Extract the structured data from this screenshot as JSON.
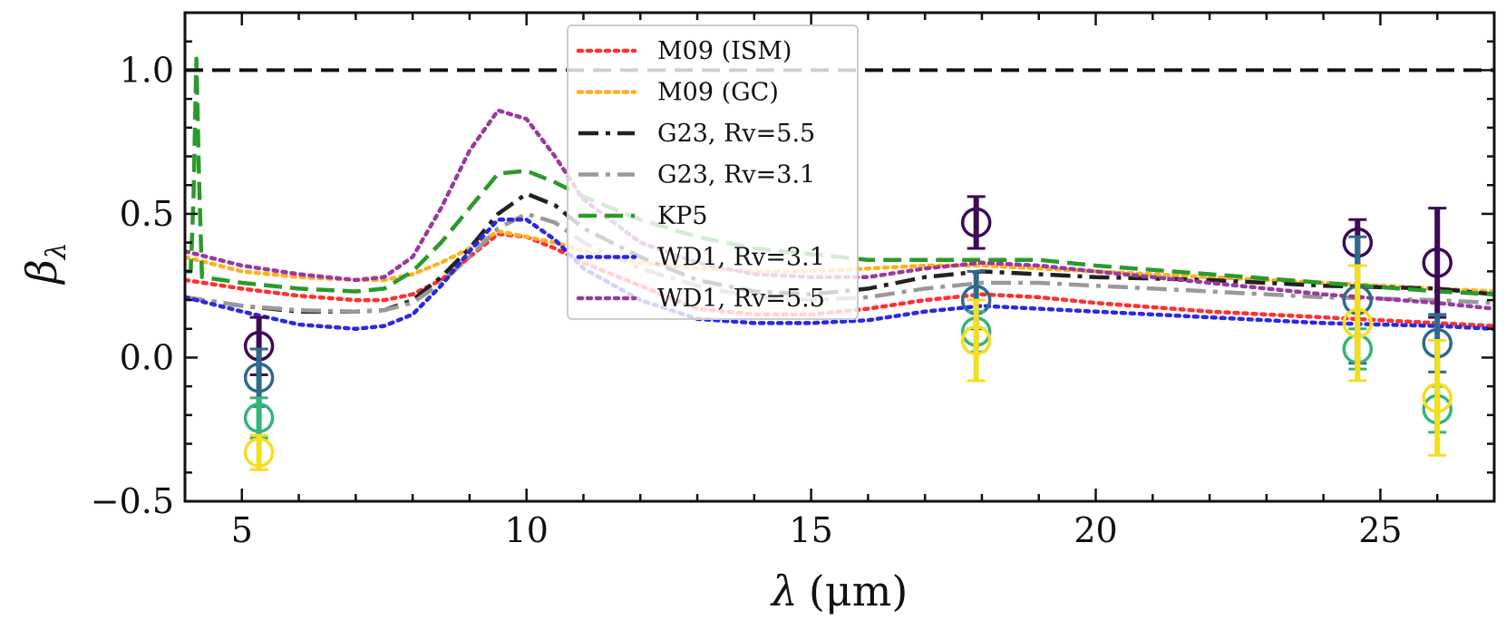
{
  "chart_data": {
    "type": "line",
    "xlabel_symbol": "λ",
    "xlabel_unit": "(μm)",
    "ylabel_symbol": "β",
    "ylabel_subscript": "λ",
    "xlim": [
      4.0,
      27.0
    ],
    "ylim": [
      -0.5,
      1.2
    ],
    "x_ticks": [
      5,
      10,
      15,
      20,
      25
    ],
    "x_tick_labels": [
      "5",
      "10",
      "15",
      "20",
      "25"
    ],
    "y_ticks": [
      -0.5,
      0.0,
      0.5,
      1.0
    ],
    "y_tick_labels": [
      "−0.5",
      "0.0",
      "0.5",
      "1.0"
    ],
    "grid": false,
    "legend_position": "top-center",
    "reference_line": {
      "y": 1.0,
      "color": "#111111",
      "style": "dashed"
    },
    "series": [
      {
        "name": "M09 (ISM)",
        "color": "#ff3030",
        "style": "dotted",
        "points": [
          [
            4.0,
            0.27
          ],
          [
            5,
            0.24
          ],
          [
            6,
            0.215
          ],
          [
            7,
            0.2
          ],
          [
            7.5,
            0.2
          ],
          [
            8,
            0.22
          ],
          [
            8.5,
            0.27
          ],
          [
            9,
            0.35
          ],
          [
            9.5,
            0.43
          ],
          [
            10,
            0.42
          ],
          [
            10.5,
            0.38
          ],
          [
            11,
            0.33
          ],
          [
            12,
            0.25
          ],
          [
            13,
            0.17
          ],
          [
            14,
            0.15
          ],
          [
            15,
            0.15
          ],
          [
            16,
            0.17
          ],
          [
            17,
            0.2
          ],
          [
            18,
            0.22
          ],
          [
            19,
            0.21
          ],
          [
            20,
            0.19
          ],
          [
            22,
            0.16
          ],
          [
            24,
            0.14
          ],
          [
            26,
            0.12
          ],
          [
            27,
            0.11
          ]
        ]
      },
      {
        "name": "M09 (GC)",
        "color": "#ffb020",
        "style": "dotted",
        "points": [
          [
            4.0,
            0.35
          ],
          [
            5,
            0.3
          ],
          [
            6,
            0.28
          ],
          [
            7,
            0.27
          ],
          [
            7.5,
            0.27
          ],
          [
            8,
            0.29
          ],
          [
            8.5,
            0.33
          ],
          [
            9,
            0.38
          ],
          [
            9.5,
            0.44
          ],
          [
            10,
            0.42
          ],
          [
            10.5,
            0.4
          ],
          [
            11,
            0.37
          ],
          [
            12,
            0.33
          ],
          [
            13,
            0.31
          ],
          [
            14,
            0.3
          ],
          [
            15,
            0.3
          ],
          [
            16,
            0.31
          ],
          [
            17,
            0.32
          ],
          [
            18,
            0.32
          ],
          [
            19,
            0.31
          ],
          [
            20,
            0.3
          ],
          [
            22,
            0.28
          ],
          [
            24,
            0.26
          ],
          [
            26,
            0.24
          ],
          [
            27,
            0.23
          ]
        ]
      },
      {
        "name": "G23, Rv=5.5",
        "color": "#222222",
        "style": "dashdot",
        "points": [
          [
            4.0,
            0.21
          ],
          [
            5,
            0.18
          ],
          [
            6,
            0.16
          ],
          [
            7,
            0.16
          ],
          [
            7.5,
            0.165
          ],
          [
            8,
            0.2
          ],
          [
            8.5,
            0.28
          ],
          [
            9,
            0.38
          ],
          [
            9.5,
            0.5
          ],
          [
            10,
            0.57
          ],
          [
            10.5,
            0.53
          ],
          [
            11,
            0.45
          ],
          [
            12,
            0.35
          ],
          [
            13,
            0.27
          ],
          [
            14,
            0.23
          ],
          [
            15,
            0.22
          ],
          [
            16,
            0.24
          ],
          [
            17,
            0.28
          ],
          [
            18,
            0.3
          ],
          [
            19,
            0.29
          ],
          [
            20,
            0.28
          ],
          [
            22,
            0.27
          ],
          [
            24,
            0.25
          ],
          [
            26,
            0.24
          ],
          [
            27,
            0.22
          ]
        ]
      },
      {
        "name": "G23, Rv=3.1",
        "color": "#999999",
        "style": "dashdot",
        "points": [
          [
            4.0,
            0.21
          ],
          [
            5,
            0.18
          ],
          [
            6,
            0.165
          ],
          [
            7,
            0.16
          ],
          [
            7.5,
            0.165
          ],
          [
            8,
            0.19
          ],
          [
            8.5,
            0.26
          ],
          [
            9,
            0.35
          ],
          [
            9.5,
            0.45
          ],
          [
            10,
            0.5
          ],
          [
            10.5,
            0.47
          ],
          [
            11,
            0.4
          ],
          [
            12,
            0.31
          ],
          [
            13,
            0.25
          ],
          [
            14,
            0.21
          ],
          [
            15,
            0.2
          ],
          [
            16,
            0.21
          ],
          [
            17,
            0.24
          ],
          [
            18,
            0.26
          ],
          [
            19,
            0.26
          ],
          [
            20,
            0.25
          ],
          [
            22,
            0.23
          ],
          [
            24,
            0.21
          ],
          [
            26,
            0.2
          ],
          [
            27,
            0.19
          ]
        ]
      },
      {
        "name": "KP5",
        "color": "#2a9a2a",
        "style": "dashed",
        "points": [
          [
            4.0,
            0.3
          ],
          [
            4.1,
            0.3
          ],
          [
            4.15,
            0.55
          ],
          [
            4.2,
            1.04
          ],
          [
            4.25,
            0.6
          ],
          [
            4.3,
            0.28
          ],
          [
            5,
            0.26
          ],
          [
            6,
            0.24
          ],
          [
            7,
            0.23
          ],
          [
            7.5,
            0.24
          ],
          [
            8,
            0.3
          ],
          [
            8.5,
            0.4
          ],
          [
            9,
            0.52
          ],
          [
            9.5,
            0.64
          ],
          [
            10,
            0.65
          ],
          [
            10.5,
            0.61
          ],
          [
            11,
            0.56
          ],
          [
            12,
            0.48
          ],
          [
            13,
            0.42
          ],
          [
            14,
            0.38
          ],
          [
            15,
            0.36
          ],
          [
            16,
            0.34
          ],
          [
            17,
            0.34
          ],
          [
            18,
            0.34
          ],
          [
            19,
            0.34
          ],
          [
            20,
            0.32
          ],
          [
            22,
            0.29
          ],
          [
            24,
            0.26
          ],
          [
            26,
            0.23
          ],
          [
            27,
            0.22
          ]
        ]
      },
      {
        "name": "WD1, Rv=3.1",
        "color": "#2a2ae0",
        "style": "dotted",
        "points": [
          [
            4.0,
            0.21
          ],
          [
            5,
            0.16
          ],
          [
            6,
            0.115
          ],
          [
            7,
            0.1
          ],
          [
            7.5,
            0.11
          ],
          [
            8,
            0.15
          ],
          [
            8.5,
            0.25
          ],
          [
            9,
            0.37
          ],
          [
            9.5,
            0.48
          ],
          [
            10,
            0.48
          ],
          [
            10.5,
            0.41
          ],
          [
            11,
            0.31
          ],
          [
            12,
            0.2
          ],
          [
            13,
            0.135
          ],
          [
            14,
            0.12
          ],
          [
            15,
            0.12
          ],
          [
            16,
            0.13
          ],
          [
            17,
            0.16
          ],
          [
            18,
            0.18
          ],
          [
            19,
            0.17
          ],
          [
            20,
            0.16
          ],
          [
            22,
            0.14
          ],
          [
            24,
            0.12
          ],
          [
            26,
            0.11
          ],
          [
            27,
            0.1
          ]
        ]
      },
      {
        "name": "WD1, Rv=5.5",
        "color": "#9a3aa0",
        "style": "dotted",
        "points": [
          [
            4.0,
            0.37
          ],
          [
            5,
            0.32
          ],
          [
            6,
            0.29
          ],
          [
            7,
            0.27
          ],
          [
            7.5,
            0.28
          ],
          [
            8,
            0.35
          ],
          [
            8.5,
            0.52
          ],
          [
            9,
            0.72
          ],
          [
            9.5,
            0.86
          ],
          [
            10,
            0.83
          ],
          [
            10.5,
            0.7
          ],
          [
            11,
            0.55
          ],
          [
            12,
            0.4
          ],
          [
            13,
            0.33
          ],
          [
            14,
            0.29
          ],
          [
            15,
            0.28
          ],
          [
            16,
            0.28
          ],
          [
            17,
            0.31
          ],
          [
            18,
            0.33
          ],
          [
            19,
            0.32
          ],
          [
            20,
            0.3
          ],
          [
            22,
            0.26
          ],
          [
            24,
            0.22
          ],
          [
            26,
            0.19
          ],
          [
            27,
            0.17
          ]
        ]
      }
    ],
    "error_series": [
      {
        "color": "#3d0a55",
        "points": [
          {
            "x": 5.3,
            "y": 0.04,
            "yerr": 0.1
          },
          {
            "x": 17.9,
            "y": 0.47,
            "yerr": 0.09
          },
          {
            "x": 24.6,
            "y": 0.4,
            "yerr": 0.08
          },
          {
            "x": 26.0,
            "y": 0.33,
            "yerr": 0.19
          }
        ]
      },
      {
        "color": "#2e6a8a",
        "points": [
          {
            "x": 5.3,
            "y": -0.07,
            "yerr": 0.1
          },
          {
            "x": 17.9,
            "y": 0.2,
            "yerr": 0.1
          },
          {
            "x": 24.6,
            "y": 0.2,
            "yerr": 0.22
          },
          {
            "x": 26.0,
            "y": 0.05,
            "yerr": 0.1
          }
        ]
      },
      {
        "color": "#35b47a",
        "points": [
          {
            "x": 5.3,
            "y": -0.21,
            "yerr": 0.07
          },
          {
            "x": 17.9,
            "y": 0.09,
            "yerr": 0.07
          },
          {
            "x": 24.6,
            "y": 0.03,
            "yerr": 0.07
          },
          {
            "x": 26.0,
            "y": -0.18,
            "yerr": 0.08
          }
        ]
      },
      {
        "color": "#f5dd20",
        "points": [
          {
            "x": 5.3,
            "y": -0.33,
            "yerr": 0.06
          },
          {
            "x": 17.9,
            "y": 0.06,
            "yerr": 0.14
          },
          {
            "x": 24.6,
            "y": 0.12,
            "yerr": 0.2
          },
          {
            "x": 26.0,
            "y": -0.14,
            "yerr": 0.2
          }
        ]
      }
    ]
  }
}
